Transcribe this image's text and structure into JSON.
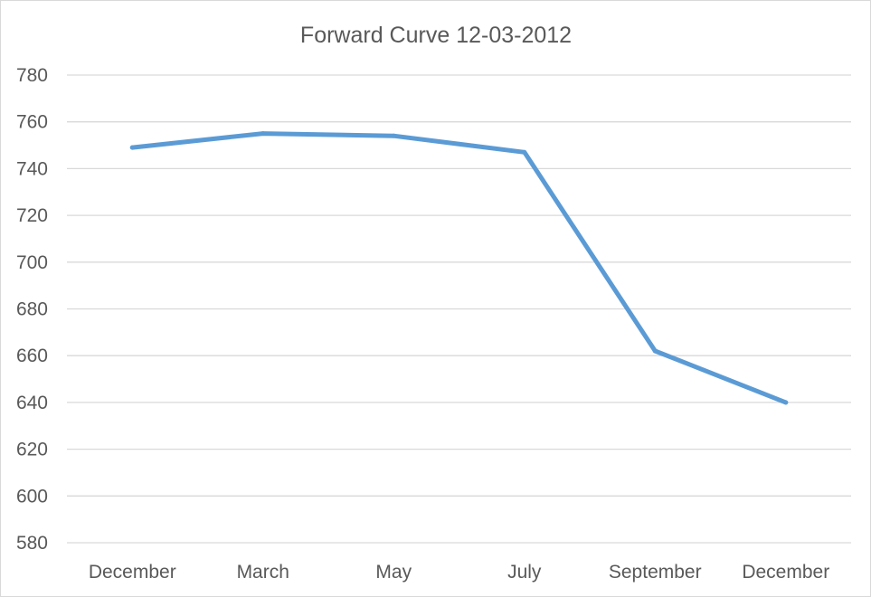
{
  "chart_data": {
    "type": "line",
    "title": "Forward Curve 12-03-2012",
    "xlabel": "",
    "ylabel": "",
    "categories": [
      "December",
      "March",
      "May",
      "July",
      "September",
      "December"
    ],
    "series": [
      {
        "values": [
          749,
          755,
          754,
          747,
          662,
          640
        ],
        "color": "#5b9bd5"
      }
    ],
    "ylim": [
      580,
      780
    ],
    "yticks": [
      580,
      600,
      620,
      640,
      660,
      680,
      700,
      720,
      740,
      760,
      780
    ],
    "grid": true,
    "legend": "none"
  }
}
